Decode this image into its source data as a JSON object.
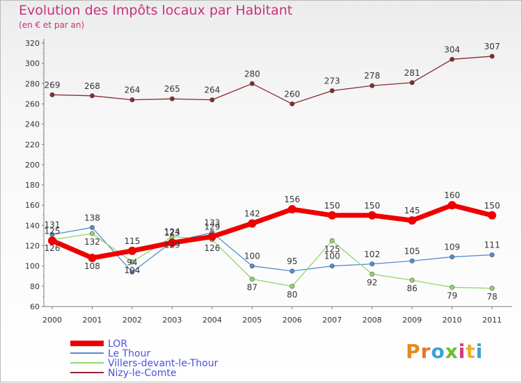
{
  "title": "Evolution des Impôts locaux par Habitant",
  "subtitle": "(en € et par an)",
  "brand": {
    "letters": [
      "P",
      "r",
      "o",
      "x",
      "i",
      "t",
      "i"
    ],
    "colors": [
      "#e68a1c",
      "#e8742a",
      "#3aa1d8",
      "#6dbb2e",
      "#d53a7a",
      "#e8b22a",
      "#3aa1d8"
    ]
  },
  "chart_data": {
    "type": "line",
    "title": "Evolution des Impôts locaux par Habitant",
    "subtitle": "(en € et par an)",
    "xlabel": "",
    "ylabel": "",
    "x": [
      2000,
      2001,
      2002,
      2003,
      2004,
      2005,
      2006,
      2007,
      2008,
      2009,
      2010,
      2011
    ],
    "ylim": [
      60,
      320
    ],
    "yticks": [
      60,
      80,
      100,
      120,
      140,
      160,
      180,
      200,
      220,
      240,
      260,
      280,
      300,
      320
    ],
    "grid": false,
    "legend_position": "bottom-left",
    "series": [
      {
        "name": "Nizy-le-Comte",
        "color": "#8b2630",
        "values": [
          269,
          268,
          264,
          265,
          264,
          280,
          260,
          273,
          278,
          281,
          304,
          307
        ]
      },
      {
        "name": "Le Thour",
        "color": "#4f8ed0",
        "values": [
          131,
          138,
          94,
          124,
          133,
          100,
          95,
          100,
          102,
          105,
          109,
          111
        ]
      },
      {
        "name": "Villers-devant-le-Thour",
        "color": "#8ed66a",
        "values": [
          126,
          132,
          104,
          129,
          126,
          87,
          80,
          125,
          92,
          86,
          79,
          78
        ]
      },
      {
        "name": "LOR",
        "color": "#ee0000",
        "values": [
          125,
          108,
          115,
          123,
          129,
          142,
          156,
          150,
          150,
          145,
          160,
          150
        ]
      }
    ],
    "legend": [
      "LOR",
      "Le Thour",
      "Villers-devant-le-Thour",
      "Nizy-le-Comte"
    ]
  }
}
